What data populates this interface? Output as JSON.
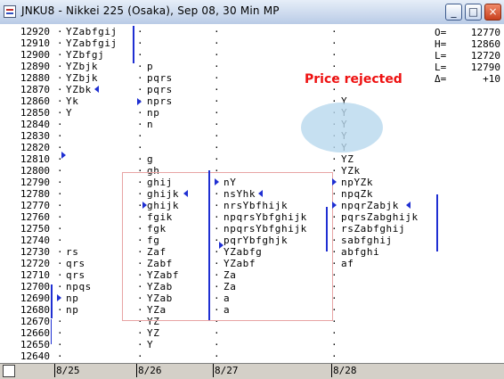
{
  "window": {
    "title": "JNKU8 - Nikkei 225 (Osaka), Sep 08, 30 Min MP",
    "buttons": {
      "minimize": "_",
      "maximize": "□",
      "close": "×"
    }
  },
  "stats": [
    {
      "label": "O=",
      "value": "12770"
    },
    {
      "label": "H=",
      "value": "12860"
    },
    {
      "label": "L=",
      "value": "12720"
    },
    {
      "label": "L=",
      "value": "12790"
    },
    {
      "label": "Δ=",
      "value": "+10"
    }
  ],
  "annotation": {
    "label": "Price rejected"
  },
  "x_axis": [
    "8/25",
    "8/26",
    "8/27",
    "8/28"
  ],
  "colors": {
    "marker": "#1f2fd2",
    "annotation_text": "#ee1111",
    "annotation_box": "#e8a4a4",
    "ellipse": "#b8d8ee"
  },
  "rows": [
    {
      "price": "12920",
      "c1": "YZabfgij",
      "c2": "",
      "c3": "",
      "c4": ""
    },
    {
      "price": "12910",
      "c1": "YZabfgij",
      "c2": "",
      "c3": "",
      "c4": ""
    },
    {
      "price": "12900",
      "c1": "YZbfgj",
      "c2": "",
      "c3": "",
      "c4": ""
    },
    {
      "price": "12890",
      "c1": "YZbjk",
      "c2": "p",
      "c3": "",
      "c4": ""
    },
    {
      "price": "12880",
      "c1": "YZbjk",
      "c2": "pqrs",
      "c3": "",
      "c4": ""
    },
    {
      "price": "12870",
      "c1": "YZbk",
      "c2": "pqrs",
      "c3": "",
      "c4": ""
    },
    {
      "price": "12860",
      "c1": "Yk",
      "c2": "nprs",
      "c3": "",
      "c4": "Y"
    },
    {
      "price": "12850",
      "c1": "Y",
      "c2": "np",
      "c3": "",
      "c4": "Y"
    },
    {
      "price": "12840",
      "c1": "",
      "c2": "n",
      "c3": "",
      "c4": "Y"
    },
    {
      "price": "12830",
      "c1": "",
      "c2": "",
      "c3": "",
      "c4": "Y"
    },
    {
      "price": "12820",
      "c1": "",
      "c2": "",
      "c3": "",
      "c4": "Y"
    },
    {
      "price": "12810",
      "c1": "",
      "c2": "g",
      "c3": "",
      "c4": "YZ"
    },
    {
      "price": "12800",
      "c1": "",
      "c2": "gh",
      "c3": "",
      "c4": "YZk"
    },
    {
      "price": "12790",
      "c1": "",
      "c2": "ghij",
      "c3": "nY",
      "c4": "npYZk"
    },
    {
      "price": "12780",
      "c1": "",
      "c2": "ghijk",
      "c3": "nsYhk",
      "c4": "npqZk"
    },
    {
      "price": "12770",
      "c1": "",
      "c2": "ghijk",
      "c3": "nrsYbfhijk",
      "c4": "npqrZabjk"
    },
    {
      "price": "12760",
      "c1": "",
      "c2": "fgik",
      "c3": "npqrsYbfghijk",
      "c4": "pqrsZabghijk"
    },
    {
      "price": "12750",
      "c1": "",
      "c2": "fgk",
      "c3": "npqrsYbfghijk",
      "c4": "rsZabfghij"
    },
    {
      "price": "12740",
      "c1": "",
      "c2": "fg",
      "c3": "pqrYbfghjk",
      "c4": "sabfghij"
    },
    {
      "price": "12730",
      "c1": "rs",
      "c2": "Zaf",
      "c3": "YZabfg",
      "c4": "abfghi"
    },
    {
      "price": "12720",
      "c1": "qrs",
      "c2": "Zabf",
      "c3": "YZabf",
      "c4": "af"
    },
    {
      "price": "12710",
      "c1": "qrs",
      "c2": "YZabf",
      "c3": "Za",
      "c4": ""
    },
    {
      "price": "12700",
      "c1": "npqs",
      "c2": "YZab",
      "c3": "Za",
      "c4": ""
    },
    {
      "price": "12690",
      "c1": "np",
      "c2": "YZab",
      "c3": "a",
      "c4": ""
    },
    {
      "price": "12680",
      "c1": "np",
      "c2": "YZa",
      "c3": "a",
      "c4": ""
    },
    {
      "price": "12670",
      "c1": "",
      "c2": "YZ",
      "c3": "",
      "c4": ""
    },
    {
      "price": "12660",
      "c1": "",
      "c2": "YZ",
      "c3": "",
      "c4": ""
    },
    {
      "price": "12650",
      "c1": "",
      "c2": "Y",
      "c3": "",
      "c4": ""
    },
    {
      "price": "12640",
      "c1": "",
      "c2": "",
      "c3": "",
      "c4": ""
    }
  ]
}
